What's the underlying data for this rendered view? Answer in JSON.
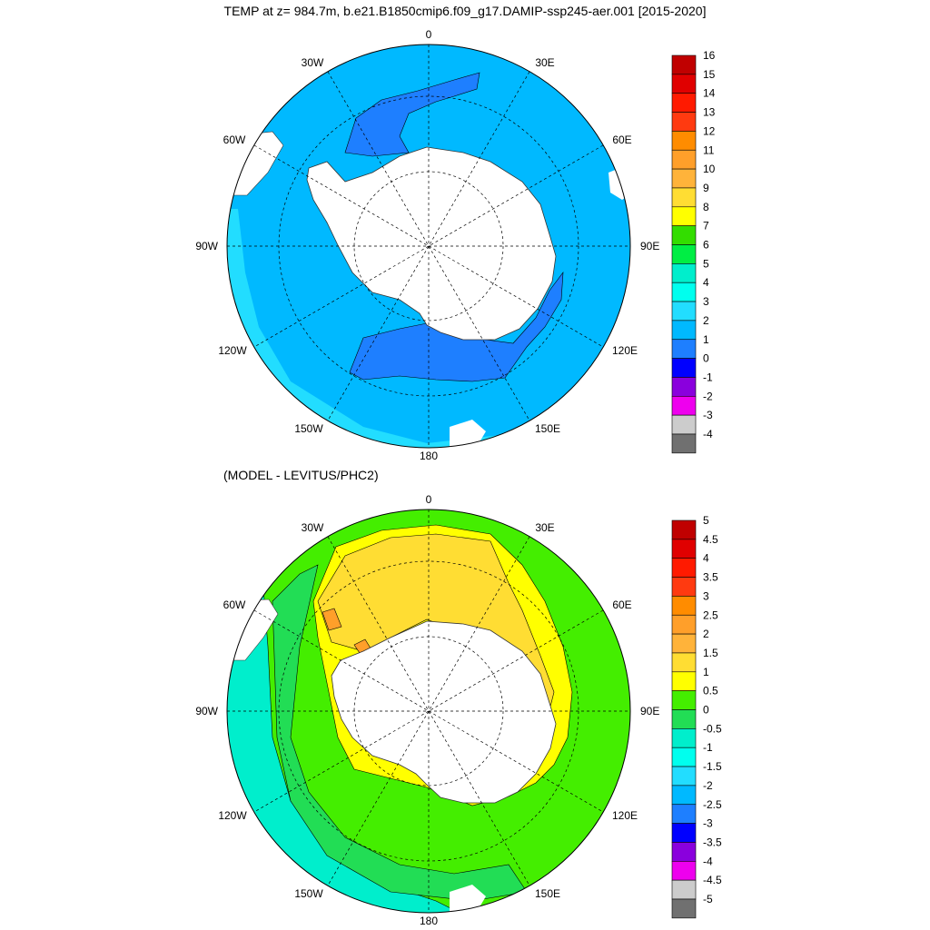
{
  "title": "TEMP at z= 984.7m, b.e21.B1850cmip6.f09_g17.DAMIP-ssp245-aer.001 [2015-2020]",
  "subtitle": "(MODEL - LEVITUS/PHC2)",
  "longitude_labels": [
    "0",
    "30E",
    "60E",
    "90E",
    "120E",
    "150E",
    "180",
    "150W",
    "120W",
    "90W",
    "60W",
    "30W"
  ],
  "top_map": {
    "colorbar_labels": [
      "16",
      "15",
      "14",
      "13",
      "12",
      "11",
      "10",
      "9",
      "8",
      "7",
      "6",
      "5",
      "4",
      "3",
      "2",
      "1",
      "0",
      "-1",
      "-2",
      "-3",
      "-4"
    ],
    "colorbar_colors": [
      "#c00000",
      "#e00000",
      "#ff1a00",
      "#ff3a10",
      "#ff8c00",
      "#ff9f2a",
      "#ffb33a",
      "#ffdd33",
      "#ffff00",
      "#33dd00",
      "#00ee44",
      "#00eecc",
      "#00ffee",
      "#22ddff",
      "#00b9ff",
      "#1e7fff",
      "#0000ff",
      "#8a00dd",
      "#ee00ee",
      "#cccccc",
      "#707070"
    ],
    "regions": {
      "land": "#ffffff",
      "background": "#00b9ff",
      "cold_band": "#1e7fff",
      "warm_margin": "#22ddff"
    }
  },
  "bottom_map": {
    "colorbar_labels": [
      "5",
      "4.5",
      "4",
      "3.5",
      "3",
      "2.5",
      "2",
      "1.5",
      "1",
      "0.5",
      "0",
      "-0.5",
      "-1",
      "-1.5",
      "-2",
      "-2.5",
      "-3",
      "-3.5",
      "-4",
      "-4.5",
      "-5"
    ],
    "colorbar_colors": [
      "#c00000",
      "#e00000",
      "#ff1a00",
      "#ff3a10",
      "#ff8c00",
      "#ff9f2a",
      "#ffb33a",
      "#ffdd33",
      "#ffff00",
      "#44ee00",
      "#22dd55",
      "#00eecc",
      "#00ffee",
      "#22ddff",
      "#00b9ff",
      "#1e7fff",
      "#0000ff",
      "#8a00dd",
      "#ee00ee",
      "#cccccc",
      "#707070"
    ],
    "regions": {
      "land": "#ffffff",
      "outer": "#00eecc",
      "green": "#44ee00",
      "green2": "#22dd55",
      "yellow": "#ffff00",
      "gold": "#ffdd33",
      "orange": "#ff9f2a"
    }
  }
}
